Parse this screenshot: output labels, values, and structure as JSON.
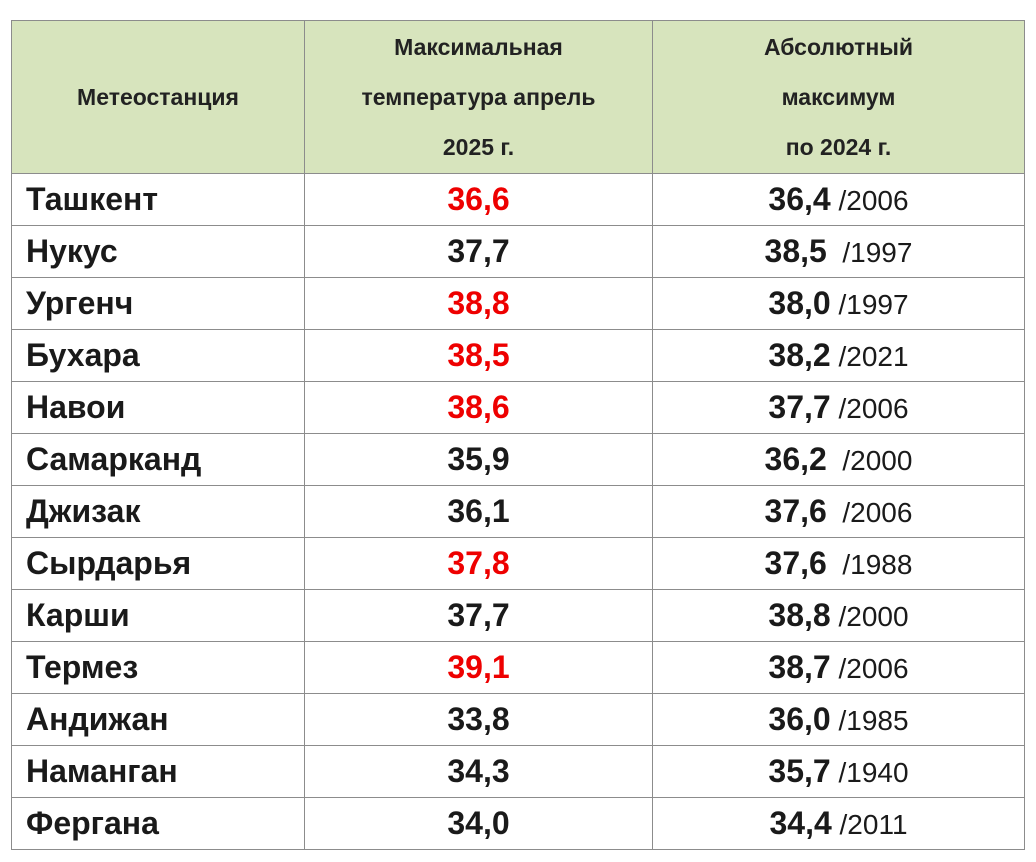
{
  "table": {
    "headers": {
      "station": "Метеостанция",
      "max_temp": [
        "Максимальная",
        "температура апрель",
        "2025 г."
      ],
      "abs_max": [
        "Абсолютный",
        "максимум",
        "по 2024 г."
      ]
    },
    "rows": [
      {
        "station": "Ташкент",
        "max_temp": "36,6",
        "record": true,
        "abs_value": "36,4",
        "abs_year": " /2006"
      },
      {
        "station": "Нукус",
        "max_temp": "37,7",
        "record": false,
        "abs_value": "38,5",
        "abs_year": "  /1997"
      },
      {
        "station": "Ургенч",
        "max_temp": "38,8",
        "record": true,
        "abs_value": "38,0",
        "abs_year": " /1997"
      },
      {
        "station": "Бухара",
        "max_temp": "38,5",
        "record": true,
        "abs_value": "38,2",
        "abs_year": " /2021"
      },
      {
        "station": "Навои",
        "max_temp": "38,6",
        "record": true,
        "abs_value": "37,7",
        "abs_year": " /2006"
      },
      {
        "station": "Самарканд",
        "max_temp": "35,9",
        "record": false,
        "abs_value": "36,2",
        "abs_year": "  /2000"
      },
      {
        "station": "Джизак",
        "max_temp": "36,1",
        "record": false,
        "abs_value": "37,6",
        "abs_year": "  /2006"
      },
      {
        "station": "Сырдарья",
        "max_temp": "37,8",
        "record": true,
        "abs_value": "37,6",
        "abs_year": "  /1988"
      },
      {
        "station": "Карши",
        "max_temp": "37,7",
        "record": false,
        "abs_value": "38,8",
        "abs_year": " /2000"
      },
      {
        "station": "Термез",
        "max_temp": "39,1",
        "record": true,
        "abs_value": "38,7",
        "abs_year": " /2006"
      },
      {
        "station": "Андижан",
        "max_temp": "33,8",
        "record": false,
        "abs_value": "36,0",
        "abs_year": " /1985"
      },
      {
        "station": "Наманган",
        "max_temp": "34,3",
        "record": false,
        "abs_value": "35,7",
        "abs_year": " /1940"
      },
      {
        "station": "Фергана",
        "max_temp": "34,0",
        "record": false,
        "abs_value": "34,4",
        "abs_year": " /2011"
      }
    ]
  },
  "colors": {
    "header_background": "#d7e4bd",
    "record_text": "#ee0000",
    "normal_text": "#1a1a1a",
    "grid_lines": "#8c8c8c"
  }
}
